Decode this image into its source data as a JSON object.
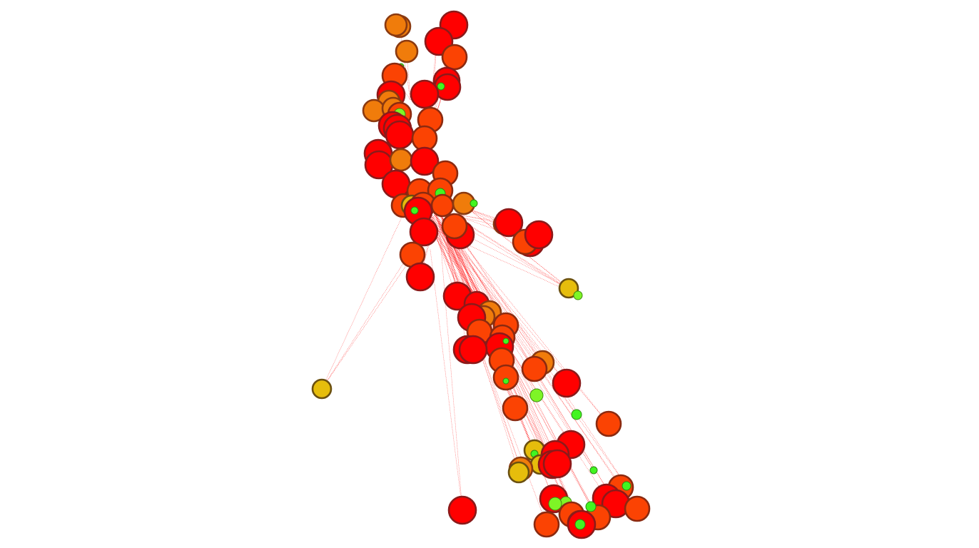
{
  "graph": {
    "background": "#ffffff",
    "edge_color": "#ff1a1a",
    "node_colors": {
      "red": {
        "fill": "#ff0000",
        "stroke": "#8b1a1a"
      },
      "red-orange": {
        "fill": "#fb4303",
        "stroke": "#8b2a10"
      },
      "orange": {
        "fill": "#f07c0b",
        "stroke": "#8b3a10"
      },
      "yellow": {
        "fill": "#e6bd0c",
        "stroke": "#6b5010"
      },
      "lime": {
        "fill": "#7ef526",
        "stroke": "#3f8a10"
      },
      "green": {
        "fill": "#42f521",
        "stroke": "#2a8a10"
      }
    },
    "node_count": 95
  }
}
